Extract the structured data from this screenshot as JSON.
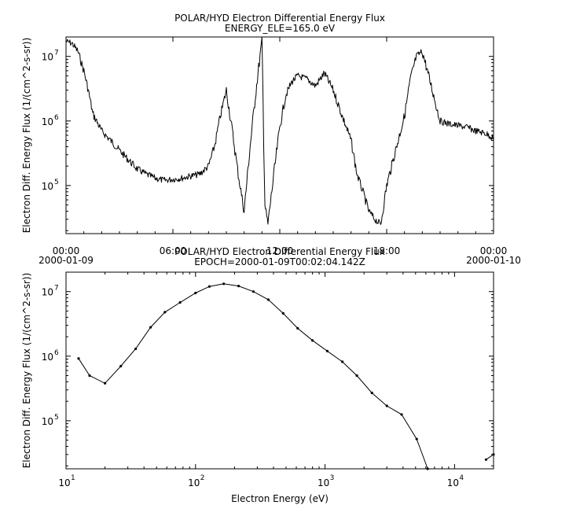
{
  "chart_data": [
    {
      "type": "line",
      "title": "POLAR/HYD  Electron Differential Energy Flux",
      "subtitle": "ENERGY_ELE=165.0 eV",
      "xlabel": "",
      "ylabel": "Electron Diff. Energy Flux (1/(cm^2-s-sr))",
      "yscale": "log",
      "ylim": [
        18000,
        20000000
      ],
      "xlim": [
        "2000-01-09 00:00",
        "2000-01-10 00:00"
      ],
      "x_ticks": [
        {
          "x": "2000-01-09 00:00",
          "label": "00:00",
          "sublabel": "2000-01-09"
        },
        {
          "x": "2000-01-09 06:00",
          "label": "06:00",
          "sublabel": ""
        },
        {
          "x": "2000-01-09 12:00",
          "label": "12:00",
          "sublabel": ""
        },
        {
          "x": "2000-01-09 18:00",
          "label": "18:00",
          "sublabel": ""
        },
        {
          "x": "2000-01-10 00:00",
          "label": "00:00",
          "sublabel": "2000-01-10"
        }
      ],
      "y_ticks": [
        {
          "value": 100000,
          "label": "10",
          "exp": "5"
        },
        {
          "value": 1000000,
          "label": "10",
          "exp": "6"
        },
        {
          "value": 10000000,
          "label": "10",
          "exp": "7"
        }
      ],
      "series": [
        {
          "x": [
            "2000-01-09 00:00",
            "2000-01-09 00:20",
            "2000-01-09 00:40",
            "2000-01-09 01:00",
            "2000-01-09 01:15",
            "2000-01-09 01:30",
            "2000-01-09 02:00",
            "2000-01-09 02:30",
            "2000-01-09 03:00",
            "2000-01-09 03:30",
            "2000-01-09 04:00",
            "2000-01-09 04:30",
            "2000-01-09 05:00",
            "2000-01-09 05:30",
            "2000-01-09 06:00",
            "2000-01-09 06:30",
            "2000-01-09 07:00",
            "2000-01-09 07:30",
            "2000-01-09 08:00",
            "2000-01-09 08:20",
            "2000-01-09 08:40",
            "2000-01-09 09:00",
            "2000-01-09 09:20",
            "2000-01-09 09:40",
            "2000-01-09 10:00",
            "2000-01-09 10:20",
            "2000-01-09 10:40",
            "2000-01-09 11:00",
            "2000-01-09 11:10",
            "2000-01-09 11:20",
            "2000-01-09 11:40",
            "2000-01-09 12:00",
            "2000-01-09 12:20",
            "2000-01-09 12:40",
            "2000-01-09 13:00",
            "2000-01-09 13:30",
            "2000-01-09 14:00",
            "2000-01-09 14:30",
            "2000-01-09 15:00",
            "2000-01-09 15:30",
            "2000-01-09 16:00",
            "2000-01-09 16:20",
            "2000-01-09 16:40",
            "2000-01-09 17:00",
            "2000-01-09 17:20",
            "2000-01-09 17:40",
            "2000-01-09 18:00",
            "2000-01-09 18:30",
            "2000-01-09 19:00",
            "2000-01-09 19:20",
            "2000-01-09 19:40",
            "2000-01-09 20:00",
            "2000-01-09 20:30",
            "2000-01-09 21:00",
            "2000-01-09 21:30",
            "2000-01-09 22:00",
            "2000-01-09 22:30",
            "2000-01-09 23:00",
            "2000-01-09 23:30",
            "2000-01-10 00:00"
          ],
          "y": [
            17000000,
            16000000,
            12000000,
            6000000,
            3000000,
            1300000,
            700000,
            500000,
            350000,
            250000,
            180000,
            150000,
            130000,
            120000,
            125000,
            130000,
            140000,
            150000,
            200000,
            400000,
            1200000,
            3000000,
            700000,
            150000,
            40000,
            400000,
            3000000,
            18000000,
            50000,
            25000,
            150000,
            800000,
            2500000,
            4000000,
            5000000,
            4500000,
            3500000,
            5500000,
            3000000,
            1200000,
            500000,
            150000,
            80000,
            40000,
            30000,
            25000,
            100000,
            350000,
            1200000,
            4500000,
            10000000,
            12000000,
            3500000,
            1000000,
            900000,
            850000,
            800000,
            700000,
            650000,
            550000
          ]
        }
      ]
    },
    {
      "type": "line",
      "title": "POLAR/HYD  Electron Differential Energy Flux",
      "subtitle": "EPOCH=2000-01-09T00:02:04.142Z",
      "xlabel": "Electron Energy (eV)",
      "ylabel": "Electron Diff. Energy Flux (1/(cm^2-s-sr))",
      "xscale": "log",
      "yscale": "log",
      "xlim": [
        10,
        20000
      ],
      "ylim": [
        18000,
        20000000
      ],
      "x_ticks": [
        {
          "value": 10,
          "label": "10",
          "exp": "1"
        },
        {
          "value": 100,
          "label": "10",
          "exp": "2"
        },
        {
          "value": 1000,
          "label": "10",
          "exp": "3"
        },
        {
          "value": 10000,
          "label": "10",
          "exp": "4"
        }
      ],
      "y_ticks": [
        {
          "value": 100000,
          "label": "10",
          "exp": "5"
        },
        {
          "value": 1000000,
          "label": "10",
          "exp": "6"
        },
        {
          "value": 10000000,
          "label": "10",
          "exp": "7"
        }
      ],
      "series": [
        {
          "x": [
            12.5,
            15.2,
            20,
            26.5,
            34.5,
            45,
            58,
            76,
            100,
            128,
            165,
            215,
            280,
            365,
            475,
            615,
            800,
            1040,
            1360,
            1760,
            2300,
            3000,
            3900,
            5100,
            6200
          ],
          "y": [
            920000,
            500000,
            380000,
            700000,
            1300000,
            2800000,
            4800000,
            6800000,
            9500000,
            12000000,
            13200000,
            12200000,
            10000000,
            7500000,
            4600000,
            2700000,
            1750000,
            1200000,
            820000,
            500000,
            270000,
            170000,
            125000,
            52000,
            18000
          ]
        },
        {
          "x": [
            17500,
            20000
          ],
          "y": [
            25000,
            30000
          ]
        }
      ]
    }
  ]
}
